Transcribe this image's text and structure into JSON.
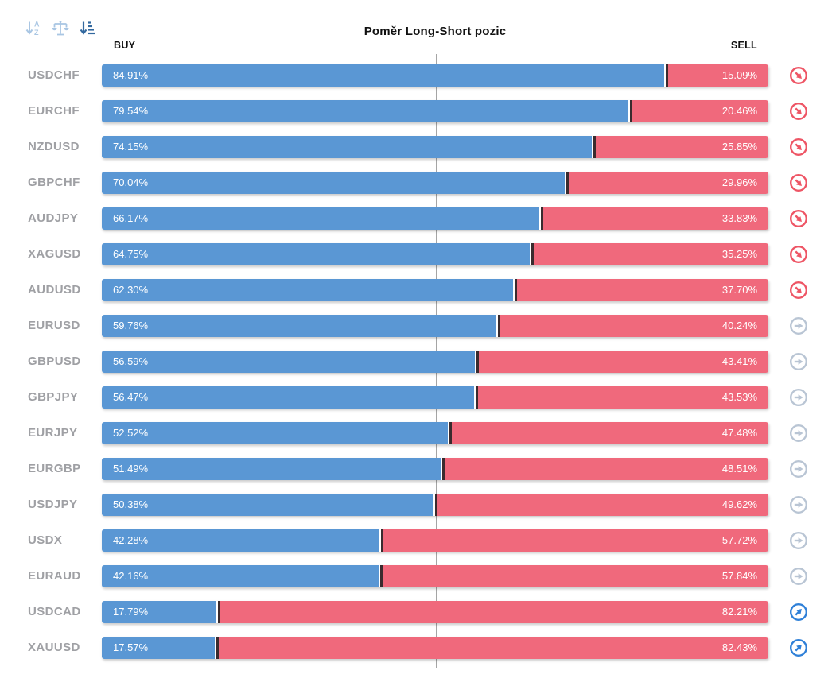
{
  "title": "Poměr Long-Short pozic",
  "columns": {
    "buy": "BUY",
    "sell": "SELL"
  },
  "toolbar": {
    "buttons": [
      {
        "id": "sort-alphabetical",
        "active": false
      },
      {
        "id": "sort-balance",
        "active": false
      },
      {
        "id": "sort-amount",
        "active": true
      }
    ]
  },
  "colors": {
    "buy": "#5a97d4",
    "sell": "#f0697c",
    "divider": "#3a2b2e",
    "center_line": "#a5a5a5",
    "label": "#9fa0a4",
    "icon_down": "#ee5565",
    "icon_neutral": "#b9c5d4",
    "icon_up": "#2f80d8",
    "tool_inactive": "#a9c6e3",
    "tool_active": "#33699f"
  },
  "chart_data": {
    "type": "bar",
    "orientation": "horizontal-stacked",
    "title": "Poměr Long-Short pozic",
    "series_labels": [
      "BUY",
      "SELL"
    ],
    "xlim": [
      0,
      100
    ],
    "center_guide_pct": 50,
    "rows": [
      {
        "pair": "USDCHF",
        "buy": 84.91,
        "sell": 15.09,
        "buy_label": "84.91%",
        "sell_label": "15.09%",
        "trend": "down"
      },
      {
        "pair": "EURCHF",
        "buy": 79.54,
        "sell": 20.46,
        "buy_label": "79.54%",
        "sell_label": "20.46%",
        "trend": "down"
      },
      {
        "pair": "NZDUSD",
        "buy": 74.15,
        "sell": 25.85,
        "buy_label": "74.15%",
        "sell_label": "25.85%",
        "trend": "down"
      },
      {
        "pair": "GBPCHF",
        "buy": 70.04,
        "sell": 29.96,
        "buy_label": "70.04%",
        "sell_label": "29.96%",
        "trend": "down"
      },
      {
        "pair": "AUDJPY",
        "buy": 66.17,
        "sell": 33.83,
        "buy_label": "66.17%",
        "sell_label": "33.83%",
        "trend": "down"
      },
      {
        "pair": "XAGUSD",
        "buy": 64.75,
        "sell": 35.25,
        "buy_label": "64.75%",
        "sell_label": "35.25%",
        "trend": "down"
      },
      {
        "pair": "AUDUSD",
        "buy": 62.3,
        "sell": 37.7,
        "buy_label": "62.30%",
        "sell_label": "37.70%",
        "trend": "down"
      },
      {
        "pair": "EURUSD",
        "buy": 59.76,
        "sell": 40.24,
        "buy_label": "59.76%",
        "sell_label": "40.24%",
        "trend": "neutral"
      },
      {
        "pair": "GBPUSD",
        "buy": 56.59,
        "sell": 43.41,
        "buy_label": "56.59%",
        "sell_label": "43.41%",
        "trend": "neutral"
      },
      {
        "pair": "GBPJPY",
        "buy": 56.47,
        "sell": 43.53,
        "buy_label": "56.47%",
        "sell_label": "43.53%",
        "trend": "neutral"
      },
      {
        "pair": "EURJPY",
        "buy": 52.52,
        "sell": 47.48,
        "buy_label": "52.52%",
        "sell_label": "47.48%",
        "trend": "neutral"
      },
      {
        "pair": "EURGBP",
        "buy": 51.49,
        "sell": 48.51,
        "buy_label": "51.49%",
        "sell_label": "48.51%",
        "trend": "neutral"
      },
      {
        "pair": "USDJPY",
        "buy": 50.38,
        "sell": 49.62,
        "buy_label": "50.38%",
        "sell_label": "49.62%",
        "trend": "neutral"
      },
      {
        "pair": "USDX",
        "buy": 42.28,
        "sell": 57.72,
        "buy_label": "42.28%",
        "sell_label": "57.72%",
        "trend": "neutral"
      },
      {
        "pair": "EURAUD",
        "buy": 42.16,
        "sell": 57.84,
        "buy_label": "42.16%",
        "sell_label": "57.84%",
        "trend": "neutral"
      },
      {
        "pair": "USDCAD",
        "buy": 17.79,
        "sell": 82.21,
        "buy_label": "17.79%",
        "sell_label": "82.21%",
        "trend": "up"
      },
      {
        "pair": "XAUUSD",
        "buy": 17.57,
        "sell": 82.43,
        "buy_label": "17.57%",
        "sell_label": "82.43%",
        "trend": "up"
      }
    ]
  }
}
